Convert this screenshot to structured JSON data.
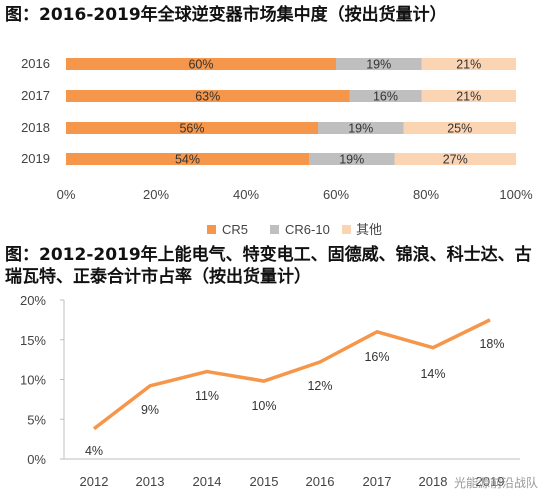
{
  "title1": "图：2016-2019年全球逆变器市场集中度（按出货量计）",
  "title2": "图：2012-2019年上能电气、特变电工、固德威、锦浪、科士达、古瑞瓦特、正泰合计市占率（按出货量计）",
  "watermark": "光能源前沿战队",
  "chart_data": [
    {
      "type": "bar",
      "orientation": "horizontal-stacked",
      "categories": [
        "2016",
        "2017",
        "2018",
        "2019"
      ],
      "series": [
        {
          "name": "CR5",
          "values": [
            60,
            63,
            56,
            54
          ],
          "labels": [
            "60%",
            "63%",
            "56%",
            "54%"
          ],
          "color": "#F5964A"
        },
        {
          "name": "CR6-10",
          "values": [
            19,
            16,
            19,
            19
          ],
          "labels": [
            "19%",
            "16%",
            "19%",
            "19%"
          ],
          "color": "#BFBFBF"
        },
        {
          "name": "其他",
          "values": [
            21,
            21,
            25,
            27
          ],
          "labels": [
            "21%",
            "21%",
            "25%",
            "27%"
          ],
          "color": "#FAD4B3"
        }
      ],
      "xticks": [
        "0%",
        "20%",
        "40%",
        "60%",
        "80%",
        "100%"
      ],
      "xlim": [
        0,
        100
      ],
      "legend_position": "bottom"
    },
    {
      "type": "line",
      "x": [
        "2012",
        "2013",
        "2014",
        "2015",
        "2016",
        "2017",
        "2018",
        "2019"
      ],
      "series": [
        {
          "values": [
            4,
            9,
            11,
            10,
            12,
            16,
            14,
            18
          ],
          "labels": [
            "4%",
            "9%",
            "11%",
            "10%",
            "12%",
            "16%",
            "14%",
            "18%"
          ],
          "color": "#F5964A"
        }
      ],
      "y_values_precise": [
        3.8,
        9.2,
        11.0,
        9.8,
        12.2,
        16.0,
        14.0,
        17.5
      ],
      "ylim": [
        0,
        20
      ],
      "yticks": [
        "0%",
        "5%",
        "10%",
        "15%",
        "20%"
      ],
      "grid": false
    }
  ]
}
